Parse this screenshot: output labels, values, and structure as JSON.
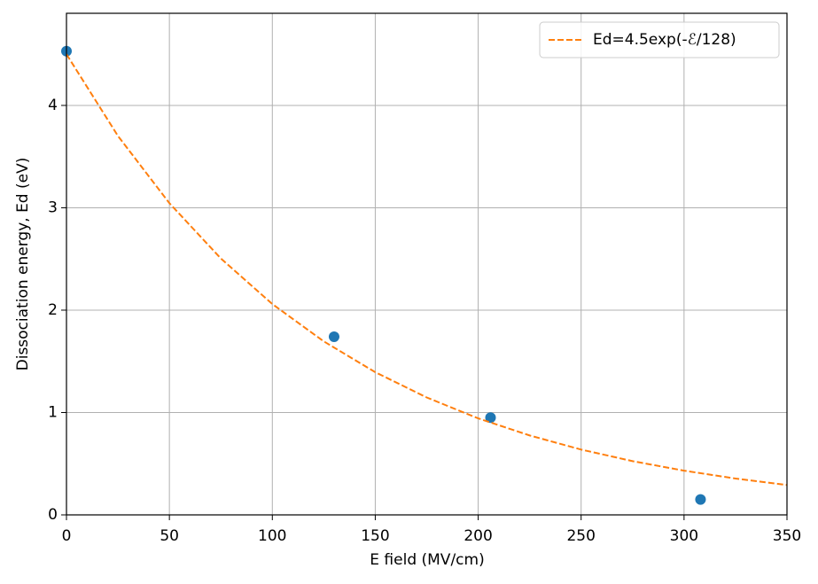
{
  "chart_data": {
    "type": "scatter",
    "xlabel": "E field (MV/cm)",
    "ylabel": "Dissociation energy, Ed (eV)",
    "xlim": [
      0,
      350
    ],
    "xticks": [
      0,
      50,
      100,
      150,
      200,
      250,
      300,
      350
    ],
    "ylim": [
      0,
      4.9
    ],
    "yticks": [
      0,
      1,
      2,
      3,
      4
    ],
    "grid": true,
    "legend": "upper right",
    "series": [
      {
        "type": "scatter",
        "color": "#1f77b4",
        "x": [
          0,
          130,
          206,
          308
        ],
        "values": [
          4.53,
          1.74,
          0.95,
          0.15
        ]
      },
      {
        "type": "line",
        "name": "Ed=4.5exp(-ℰ/128)",
        "color": "#ff7f0e",
        "dashed": true,
        "x": [
          0,
          25,
          50,
          75,
          100,
          125,
          150,
          175,
          200,
          225,
          250,
          275,
          300,
          325,
          350
        ],
        "values": [
          4.5,
          3.702,
          3.045,
          2.505,
          2.06,
          1.695,
          1.394,
          1.147,
          0.943,
          0.776,
          0.638,
          0.525,
          0.432,
          0.355,
          0.292
        ]
      }
    ]
  }
}
